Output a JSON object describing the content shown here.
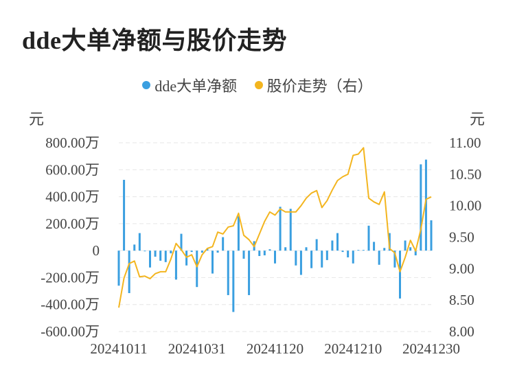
{
  "title": "dde大单净额与股价走势",
  "legend": {
    "bar_label": "dde大单净额",
    "line_label": "股价走势（右）"
  },
  "units": {
    "left": "元",
    "right": "元"
  },
  "colors": {
    "bar": "#3a9fe0",
    "line": "#f3b51f",
    "grid": "#e6e6e6"
  },
  "chart_data": {
    "type": "bar+line",
    "title": "dde大单净额与股价走势",
    "left_axis": {
      "range": [
        -600,
        800
      ],
      "unit": "万",
      "ticks": [
        "800.00万",
        "600.00万",
        "400.00万",
        "200.00万",
        "0",
        "-200.00万",
        "-400.00万",
        "-600.00万"
      ],
      "tick_values": [
        800,
        600,
        400,
        200,
        0,
        -200,
        -400,
        -600
      ]
    },
    "right_axis": {
      "range": [
        8.0,
        11.0
      ],
      "ticks": [
        "11.00",
        "10.50",
        "10.00",
        "9.50",
        "9.00",
        "8.50",
        "8.00"
      ],
      "tick_values": [
        11.0,
        10.5,
        10.0,
        9.5,
        9.0,
        8.5,
        8.0
      ]
    },
    "x_ticks": [
      {
        "index": 0,
        "label": "20241011"
      },
      {
        "index": 15,
        "label": "20241031"
      },
      {
        "index": 30,
        "label": "20241120"
      },
      {
        "index": 45,
        "label": "20241210"
      },
      {
        "index": 60,
        "label": "20241230"
      }
    ],
    "series": [
      {
        "name": "dde大单净额",
        "axis": "left",
        "values": [
          -260,
          525,
          -315,
          45,
          130,
          -5,
          -125,
          -45,
          -75,
          -85,
          -20,
          -215,
          125,
          -110,
          -10,
          -270,
          -15,
          15,
          -170,
          -15,
          100,
          -330,
          -455,
          255,
          -60,
          -330,
          70,
          -40,
          -35,
          10,
          -95,
          325,
          25,
          310,
          -110,
          -180,
          25,
          -130,
          85,
          -125,
          -70,
          75,
          130,
          -10,
          -50,
          -95,
          5,
          5,
          185,
          65,
          -105,
          20,
          130,
          -125,
          -355,
          75,
          25,
          -35,
          640,
          675,
          225
        ]
      },
      {
        "name": "股价走势（右）",
        "axis": "right",
        "values": [
          8.38,
          8.85,
          9.08,
          9.12,
          8.87,
          8.88,
          8.84,
          8.92,
          8.95,
          8.95,
          9.15,
          9.4,
          9.3,
          9.18,
          9.22,
          9.03,
          9.22,
          9.32,
          9.35,
          9.58,
          9.55,
          9.66,
          9.68,
          9.88,
          9.53,
          9.46,
          9.35,
          9.55,
          9.75,
          9.9,
          9.85,
          9.95,
          9.9,
          9.9,
          9.9,
          10.0,
          10.12,
          10.2,
          10.24,
          9.97,
          10.08,
          10.25,
          10.4,
          10.46,
          10.5,
          10.8,
          10.82,
          10.92,
          10.12,
          10.06,
          10.02,
          10.22,
          9.32,
          9.25,
          8.95,
          9.18,
          9.45,
          9.28,
          9.62,
          10.1,
          10.14
        ]
      }
    ]
  }
}
